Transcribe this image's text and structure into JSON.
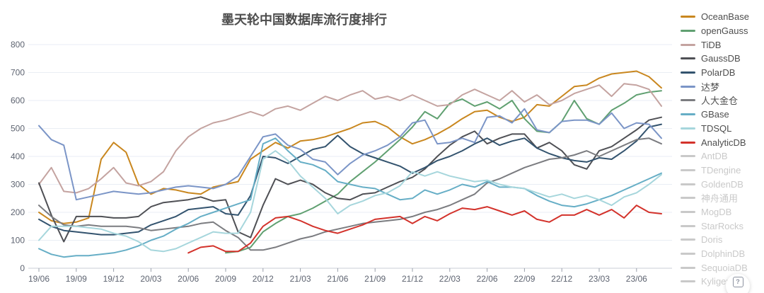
{
  "title": "墨天轮中国数据库流行度排行",
  "chart_data": {
    "type": "line",
    "title": "墨天轮中国数据库流行度排行",
    "xlabel": "",
    "ylabel": "",
    "ylim": [
      0,
      800
    ],
    "y_ticks": [
      0,
      100,
      200,
      300,
      400,
      500,
      600,
      700,
      800
    ],
    "grid": true,
    "legend_position": "right",
    "x_tick_labels": [
      "19/06",
      "19/09",
      "19/12",
      "20/03",
      "20/06",
      "20/09",
      "20/12",
      "21/03",
      "21/06",
      "21/09",
      "21/12",
      "22/03",
      "22/06",
      "22/09",
      "22/12",
      "23/03",
      "23/06"
    ],
    "months_between_ticks": 3,
    "monthly_points": 51,
    "colors": {
      "grid": "#e9eef4",
      "axis_line": "#c8cdd6",
      "axis_tick": "#9aa0ab",
      "axis_label": "#5d6370",
      "inactive_legend": "#c9c9c9",
      "title_text": "#4d4d4d"
    },
    "series": [
      {
        "name": "OceanBase",
        "color": "#c9871f",
        "active": true,
        "values": [
          200,
          170,
          160,
          165,
          180,
          390,
          450,
          415,
          300,
          265,
          285,
          280,
          270,
          265,
          290,
          300,
          310,
          390,
          420,
          450,
          430,
          455,
          460,
          470,
          485,
          500,
          520,
          525,
          505,
          470,
          445,
          460,
          480,
          505,
          535,
          560,
          565,
          540,
          525,
          540,
          585,
          580,
          615,
          650,
          655,
          680,
          695,
          700,
          705,
          685,
          645
        ]
      },
      {
        "name": "openGauss",
        "color": "#60a071",
        "active": true,
        "values": [
          null,
          null,
          null,
          null,
          null,
          null,
          null,
          null,
          null,
          null,
          null,
          null,
          null,
          null,
          null,
          55,
          60,
          75,
          130,
          160,
          185,
          195,
          215,
          240,
          265,
          310,
          345,
          380,
          420,
          460,
          505,
          560,
          535,
          590,
          605,
          580,
          595,
          570,
          600,
          535,
          490,
          485,
          525,
          600,
          535,
          515,
          565,
          590,
          620,
          630,
          635
        ]
      },
      {
        "name": "TiDB",
        "color": "#c4a3a0",
        "active": true,
        "values": [
          300,
          360,
          275,
          270,
          285,
          320,
          360,
          305,
          295,
          310,
          345,
          420,
          470,
          500,
          520,
          530,
          545,
          560,
          545,
          570,
          580,
          565,
          590,
          615,
          600,
          620,
          635,
          605,
          615,
          600,
          620,
          600,
          580,
          585,
          620,
          640,
          620,
          600,
          635,
          595,
          620,
          585,
          600,
          625,
          640,
          655,
          615,
          660,
          655,
          640,
          580
        ]
      },
      {
        "name": "GaussDB",
        "color": "#4f5055",
        "active": true,
        "values": [
          305,
          190,
          95,
          185,
          185,
          185,
          180,
          180,
          185,
          220,
          235,
          240,
          245,
          255,
          240,
          245,
          130,
          110,
          225,
          320,
          300,
          315,
          300,
          270,
          250,
          245,
          265,
          270,
          290,
          310,
          325,
          355,
          400,
          440,
          470,
          490,
          445,
          465,
          480,
          480,
          430,
          450,
          420,
          370,
          355,
          420,
          435,
          465,
          495,
          530,
          540
        ]
      },
      {
        "name": "PolarDB",
        "color": "#33536e",
        "active": true,
        "values": [
          175,
          150,
          135,
          130,
          125,
          120,
          120,
          125,
          130,
          155,
          170,
          185,
          210,
          215,
          220,
          195,
          190,
          260,
          400,
          395,
          375,
          400,
          425,
          435,
          475,
          435,
          410,
          395,
          380,
          365,
          340,
          360,
          385,
          400,
          420,
          445,
          465,
          440,
          455,
          465,
          430,
          410,
          395,
          385,
          380,
          395,
          390,
          420,
          455,
          505,
          515
        ]
      },
      {
        "name": "达梦",
        "color": "#7b95c7",
        "active": true,
        "values": [
          510,
          460,
          440,
          245,
          255,
          265,
          275,
          270,
          265,
          270,
          280,
          290,
          295,
          290,
          285,
          300,
          330,
          400,
          470,
          480,
          440,
          425,
          390,
          380,
          335,
          375,
          405,
          420,
          440,
          470,
          520,
          530,
          445,
          450,
          465,
          450,
          540,
          545,
          520,
          570,
          495,
          485,
          525,
          530,
          530,
          515,
          555,
          500,
          520,
          515,
          465
        ]
      },
      {
        "name": "人大金仓",
        "color": "#7b7c80",
        "active": true,
        "values": [
          225,
          185,
          155,
          150,
          155,
          150,
          150,
          150,
          145,
          135,
          140,
          145,
          150,
          160,
          165,
          135,
          110,
          65,
          65,
          75,
          90,
          105,
          115,
          130,
          140,
          150,
          160,
          165,
          170,
          175,
          185,
          200,
          210,
          225,
          245,
          265,
          305,
          320,
          340,
          360,
          375,
          390,
          395,
          405,
          420,
          400,
          420,
          440,
          460,
          465,
          445
        ]
      },
      {
        "name": "GBase",
        "color": "#66aec6",
        "active": true,
        "values": [
          70,
          50,
          40,
          45,
          45,
          50,
          55,
          65,
          80,
          100,
          115,
          140,
          160,
          185,
          200,
          215,
          230,
          245,
          445,
          465,
          420,
          380,
          370,
          350,
          310,
          300,
          290,
          285,
          265,
          245,
          250,
          280,
          265,
          280,
          300,
          290,
          310,
          290,
          290,
          285,
          260,
          240,
          225,
          220,
          230,
          245,
          260,
          280,
          300,
          320,
          340
        ]
      },
      {
        "name": "TDSQL",
        "color": "#a6d6dc",
        "active": true,
        "values": [
          100,
          150,
          150,
          150,
          145,
          140,
          125,
          115,
          95,
          65,
          60,
          70,
          90,
          110,
          130,
          125,
          125,
          200,
          390,
          420,
          385,
          330,
          290,
          250,
          195,
          225,
          240,
          260,
          270,
          295,
          345,
          330,
          345,
          330,
          320,
          310,
          315,
          300,
          290,
          285,
          270,
          255,
          265,
          250,
          260,
          245,
          225,
          255,
          270,
          300,
          335
        ]
      },
      {
        "name": "AnalyticDB",
        "color": "#d3322b",
        "active": true,
        "values": [
          null,
          null,
          null,
          null,
          null,
          null,
          null,
          null,
          null,
          null,
          null,
          null,
          55,
          75,
          80,
          60,
          60,
          90,
          150,
          180,
          185,
          170,
          150,
          135,
          125,
          140,
          155,
          175,
          180,
          185,
          160,
          185,
          170,
          195,
          215,
          210,
          220,
          205,
          190,
          205,
          175,
          165,
          190,
          190,
          210,
          190,
          210,
          180,
          225,
          200,
          195
        ]
      },
      {
        "name": "AntDB",
        "active": false
      },
      {
        "name": "TDengine",
        "active": false
      },
      {
        "name": "GoldenDB",
        "active": false
      },
      {
        "name": "神舟通用",
        "active": false
      },
      {
        "name": "MogDB",
        "active": false
      },
      {
        "name": "StarRocks",
        "active": false
      },
      {
        "name": "Doris",
        "active": false
      },
      {
        "name": "DolphinDB",
        "active": false
      },
      {
        "name": "SequoiaDB",
        "active": false
      },
      {
        "name": "Kyligence",
        "active": false
      }
    ]
  },
  "floating_button": {
    "icon": "questionnaire-icon",
    "glyph": "?"
  }
}
